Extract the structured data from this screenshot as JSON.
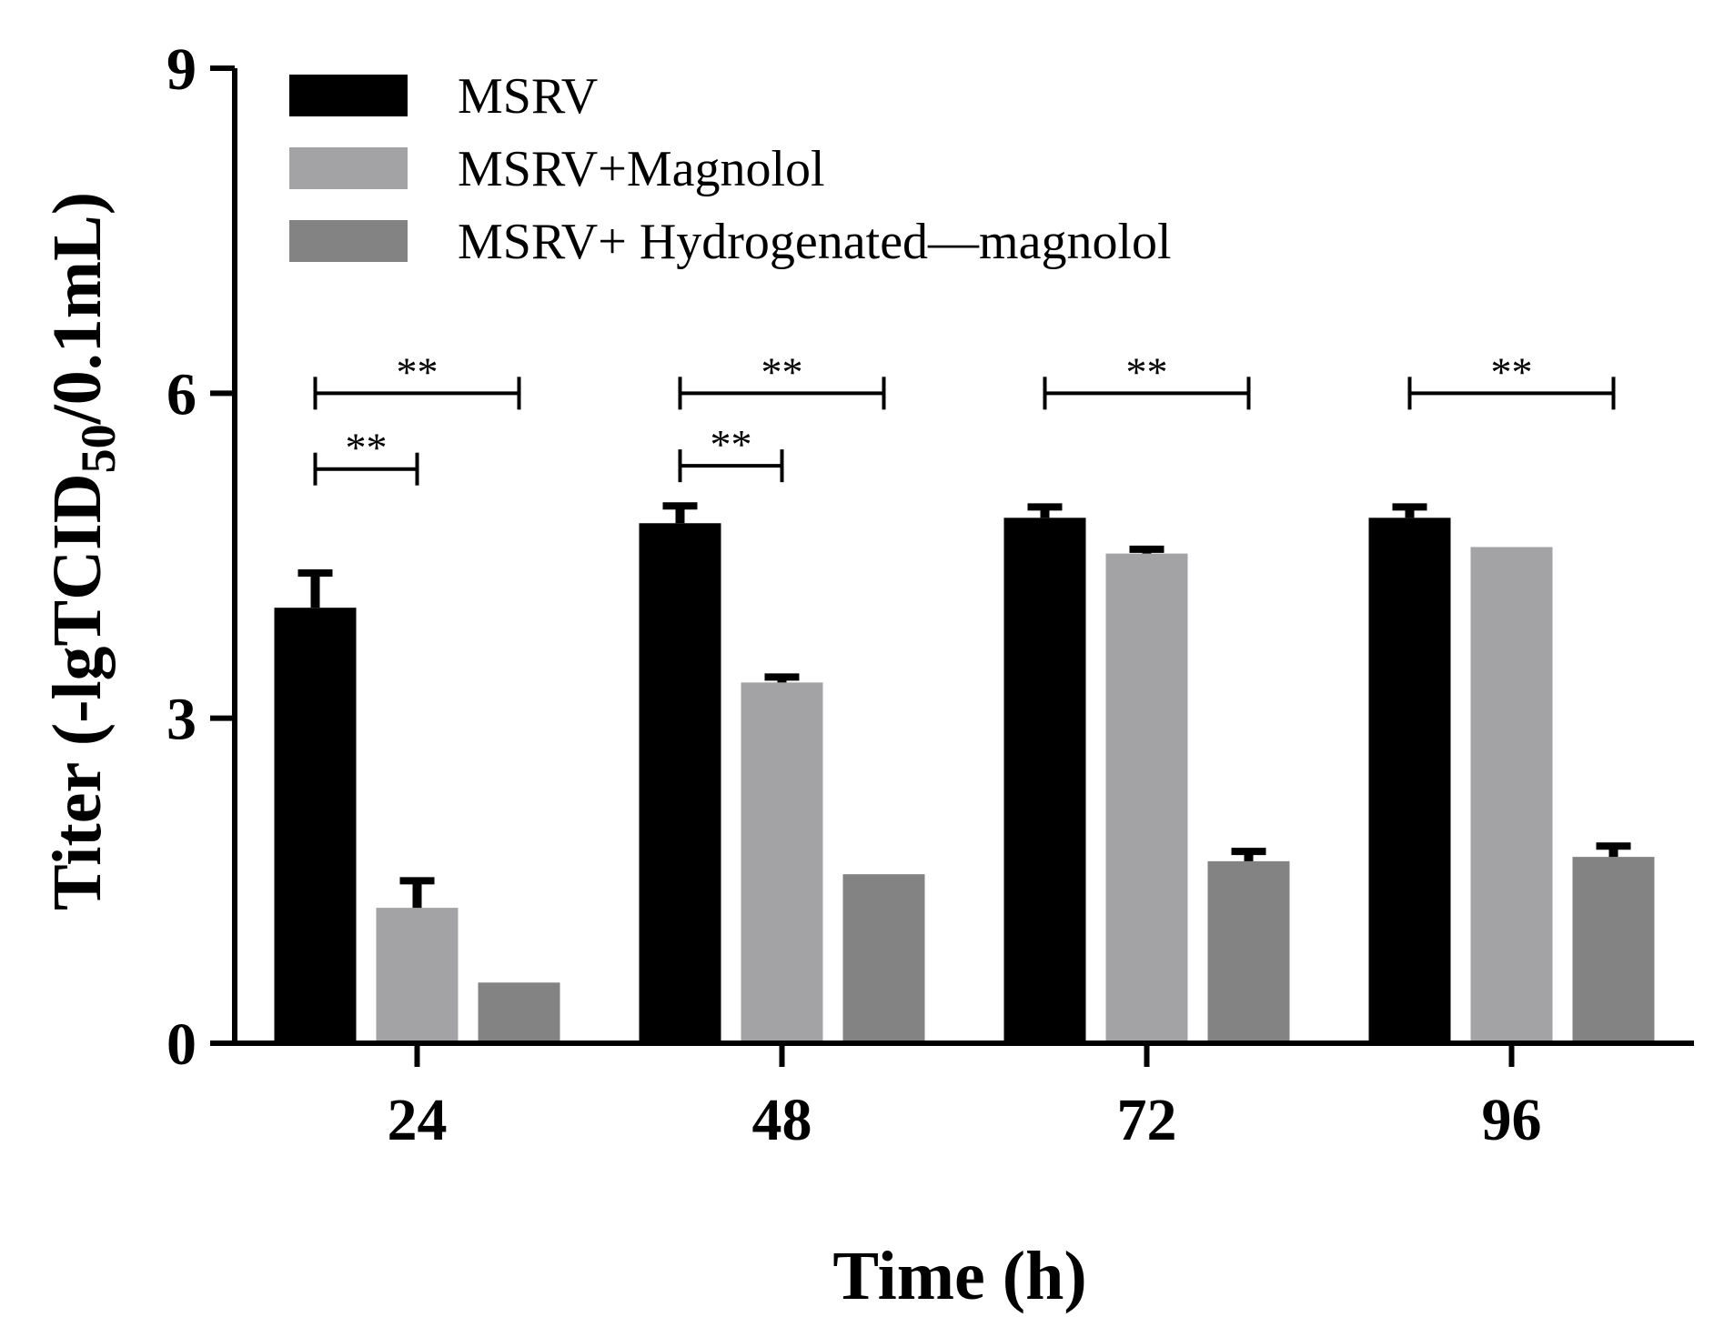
{
  "chart_data": {
    "type": "bar",
    "title": "",
    "xlabel": "Time (h)",
    "ylabel_main": "Titer (-lgTCID",
    "ylabel_sub": "50",
    "ylabel_end": "/0.1mL)",
    "categories": [
      "24",
      "48",
      "72",
      "96"
    ],
    "ylim": [
      0,
      9
    ],
    "yticks": [
      "0",
      "3",
      "6",
      "9"
    ],
    "series": [
      {
        "name": "MSRV",
        "color": "#000000",
        "values": [
          4.02,
          4.8,
          4.85,
          4.85
        ],
        "errors": [
          0.32,
          0.16,
          0.1,
          0.1
        ]
      },
      {
        "name": "MSRV+Magnolol",
        "color": "#a3a3a6",
        "values": [
          1.25,
          3.33,
          4.52,
          4.58
        ],
        "errors": [
          0.25,
          0.05,
          0.04,
          0.0
        ]
      },
      {
        "name": "MSRV+ Hydrogenated—magnolol",
        "color": "#838383",
        "values": [
          0.56,
          1.56,
          1.68,
          1.72
        ],
        "errors": [
          0.0,
          0.0,
          0.09,
          0.1
        ]
      }
    ],
    "significance": [
      {
        "category": 0,
        "from_series": 0,
        "to_series": 2,
        "label": "**",
        "level": 6.0
      },
      {
        "category": 0,
        "from_series": 0,
        "to_series": 1,
        "label": "**",
        "level": 5.3
      },
      {
        "category": 1,
        "from_series": 0,
        "to_series": 2,
        "label": "**",
        "level": 6.0
      },
      {
        "category": 1,
        "from_series": 0,
        "to_series": 1,
        "label": "**",
        "level": 5.33
      },
      {
        "category": 2,
        "from_series": 0,
        "to_series": 2,
        "label": "**",
        "level": 6.0
      },
      {
        "category": 3,
        "from_series": 0,
        "to_series": 2,
        "label": "**",
        "level": 6.0
      }
    ],
    "legend_position": "top-left",
    "grid": false
  }
}
